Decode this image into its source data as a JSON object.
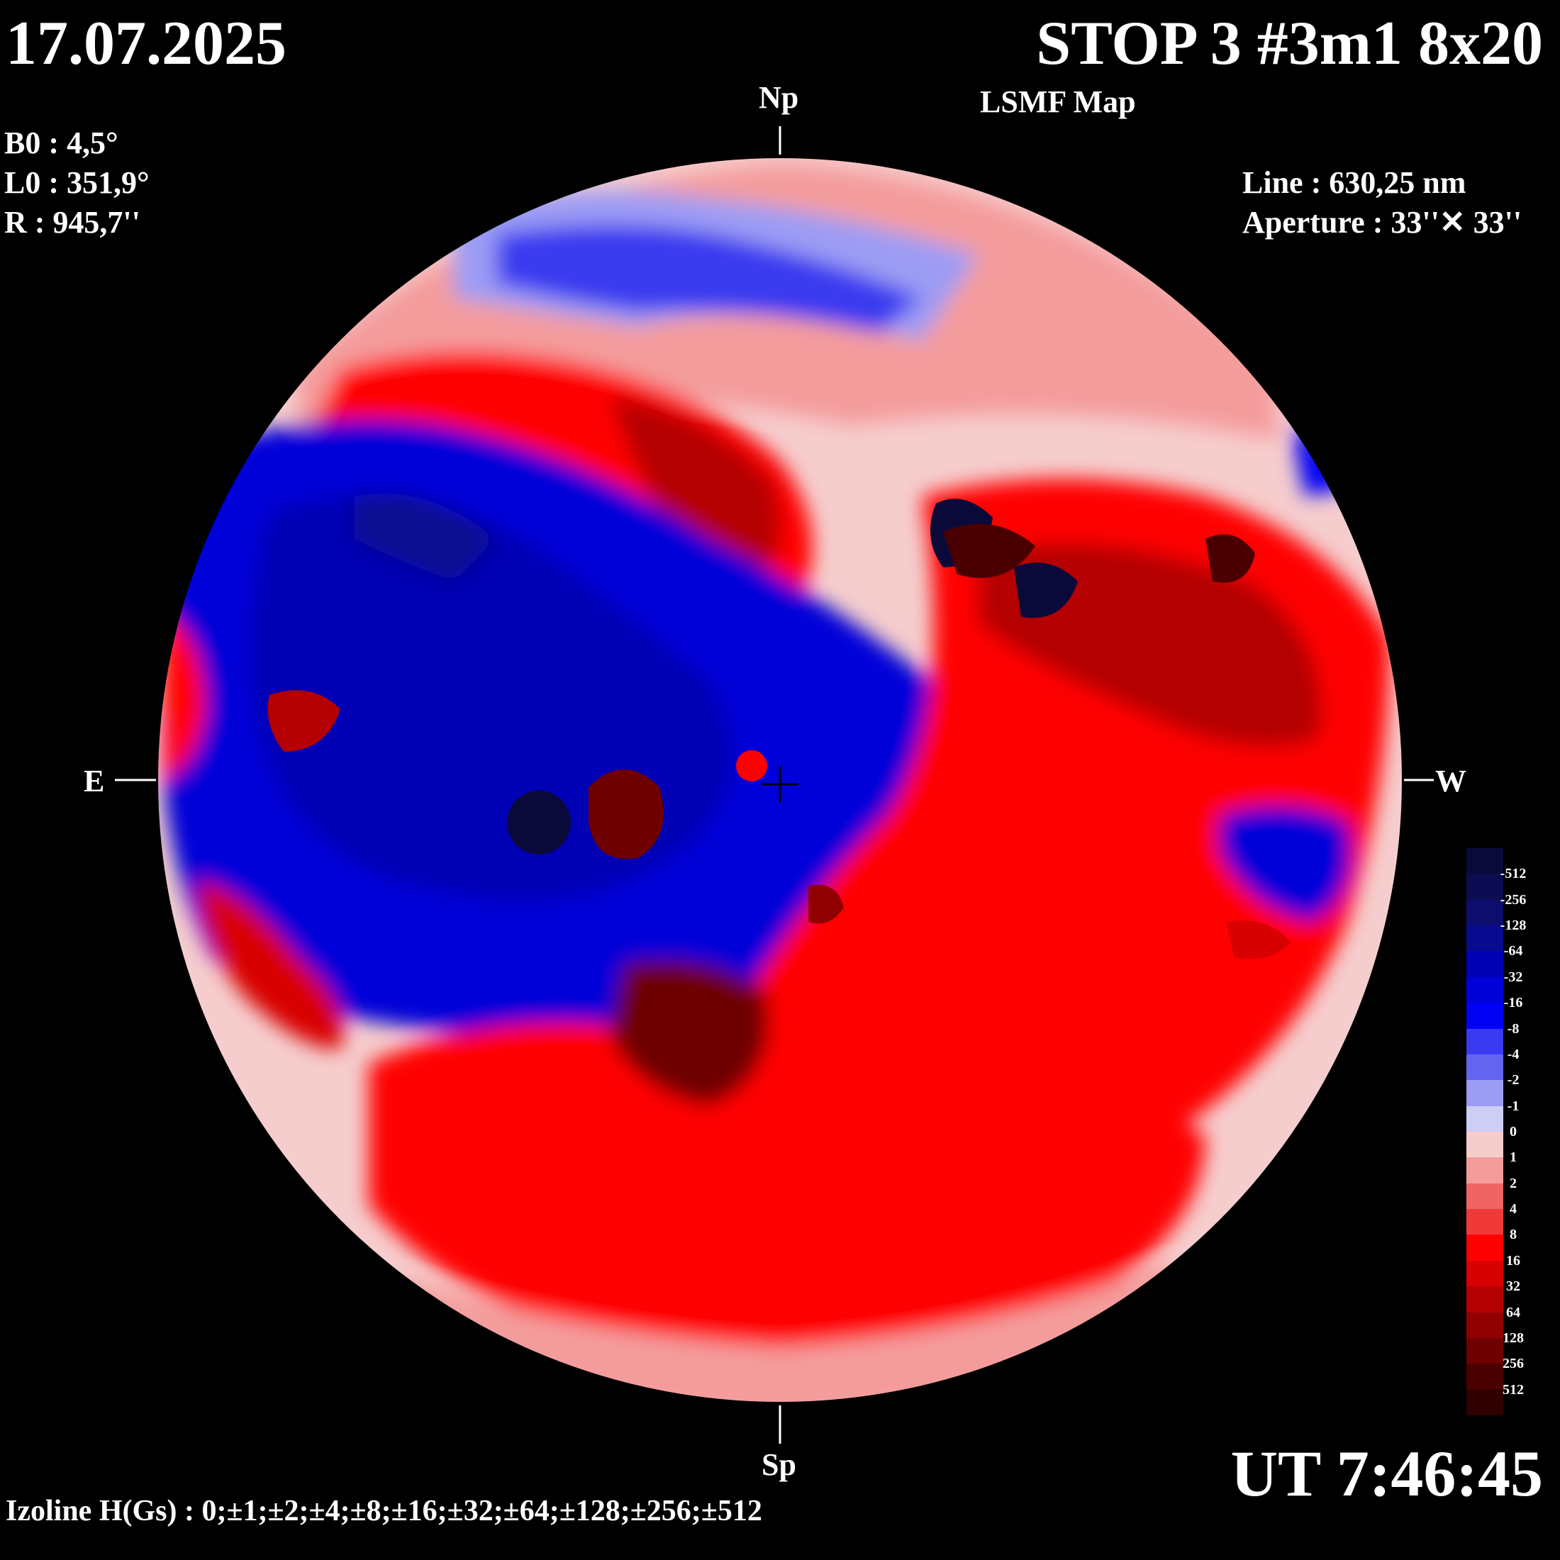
{
  "header": {
    "date": "17.07.2025",
    "title": "STOP 3 #3m1 8x20",
    "subtitle": "LSMF  Map"
  },
  "ephemeris": {
    "b0": "B0 : 4,5°",
    "l0": "L0 : 351,9°",
    "r": "R  : 945,7''"
  },
  "instrument": {
    "line": "Line :  630,25 nm",
    "aperture": "Aperture : 33''✕ 33''"
  },
  "directions": {
    "north": "Np",
    "south": "Sp",
    "east": "E",
    "west": "W"
  },
  "time": "UT 7:46:45",
  "izoline": "Izoline H(Gs) : 0;±1;±2;±4;±8;±16;±32;±64;±128;±256;±512",
  "colorbar": [
    {
      "label": "-512",
      "color": "#0a0a3a"
    },
    {
      "label": "-256",
      "color": "#0c0c52"
    },
    {
      "label": "-128",
      "color": "#0d0d6e"
    },
    {
      "label": "-64",
      "color": "#0a0a90"
    },
    {
      "label": "-32",
      "color": "#0000b4"
    },
    {
      "label": "-16",
      "color": "#0000d8"
    },
    {
      "label": "-8",
      "color": "#0000f5"
    },
    {
      "label": "-4",
      "color": "#3a3af0"
    },
    {
      "label": "-2",
      "color": "#6464f0"
    },
    {
      "label": "-1",
      "color": "#9c9cf4"
    },
    {
      "label": "0",
      "color": "#cdcdf6"
    },
    {
      "label": "1",
      "color": "#f6cdcd"
    },
    {
      "label": "2",
      "color": "#f49c9c"
    },
    {
      "label": "4",
      "color": "#f06464"
    },
    {
      "label": "8",
      "color": "#f03a3a"
    },
    {
      "label": "16",
      "color": "#ff0000"
    },
    {
      "label": "32",
      "color": "#d80000"
    },
    {
      "label": "64",
      "color": "#b40000"
    },
    {
      "label": "128",
      "color": "#900000"
    },
    {
      "label": "256",
      "color": "#6e0000"
    },
    {
      "label": "512",
      "color": "#4a0000"
    },
    {
      "label": "",
      "color": "#2e0000"
    }
  ]
}
